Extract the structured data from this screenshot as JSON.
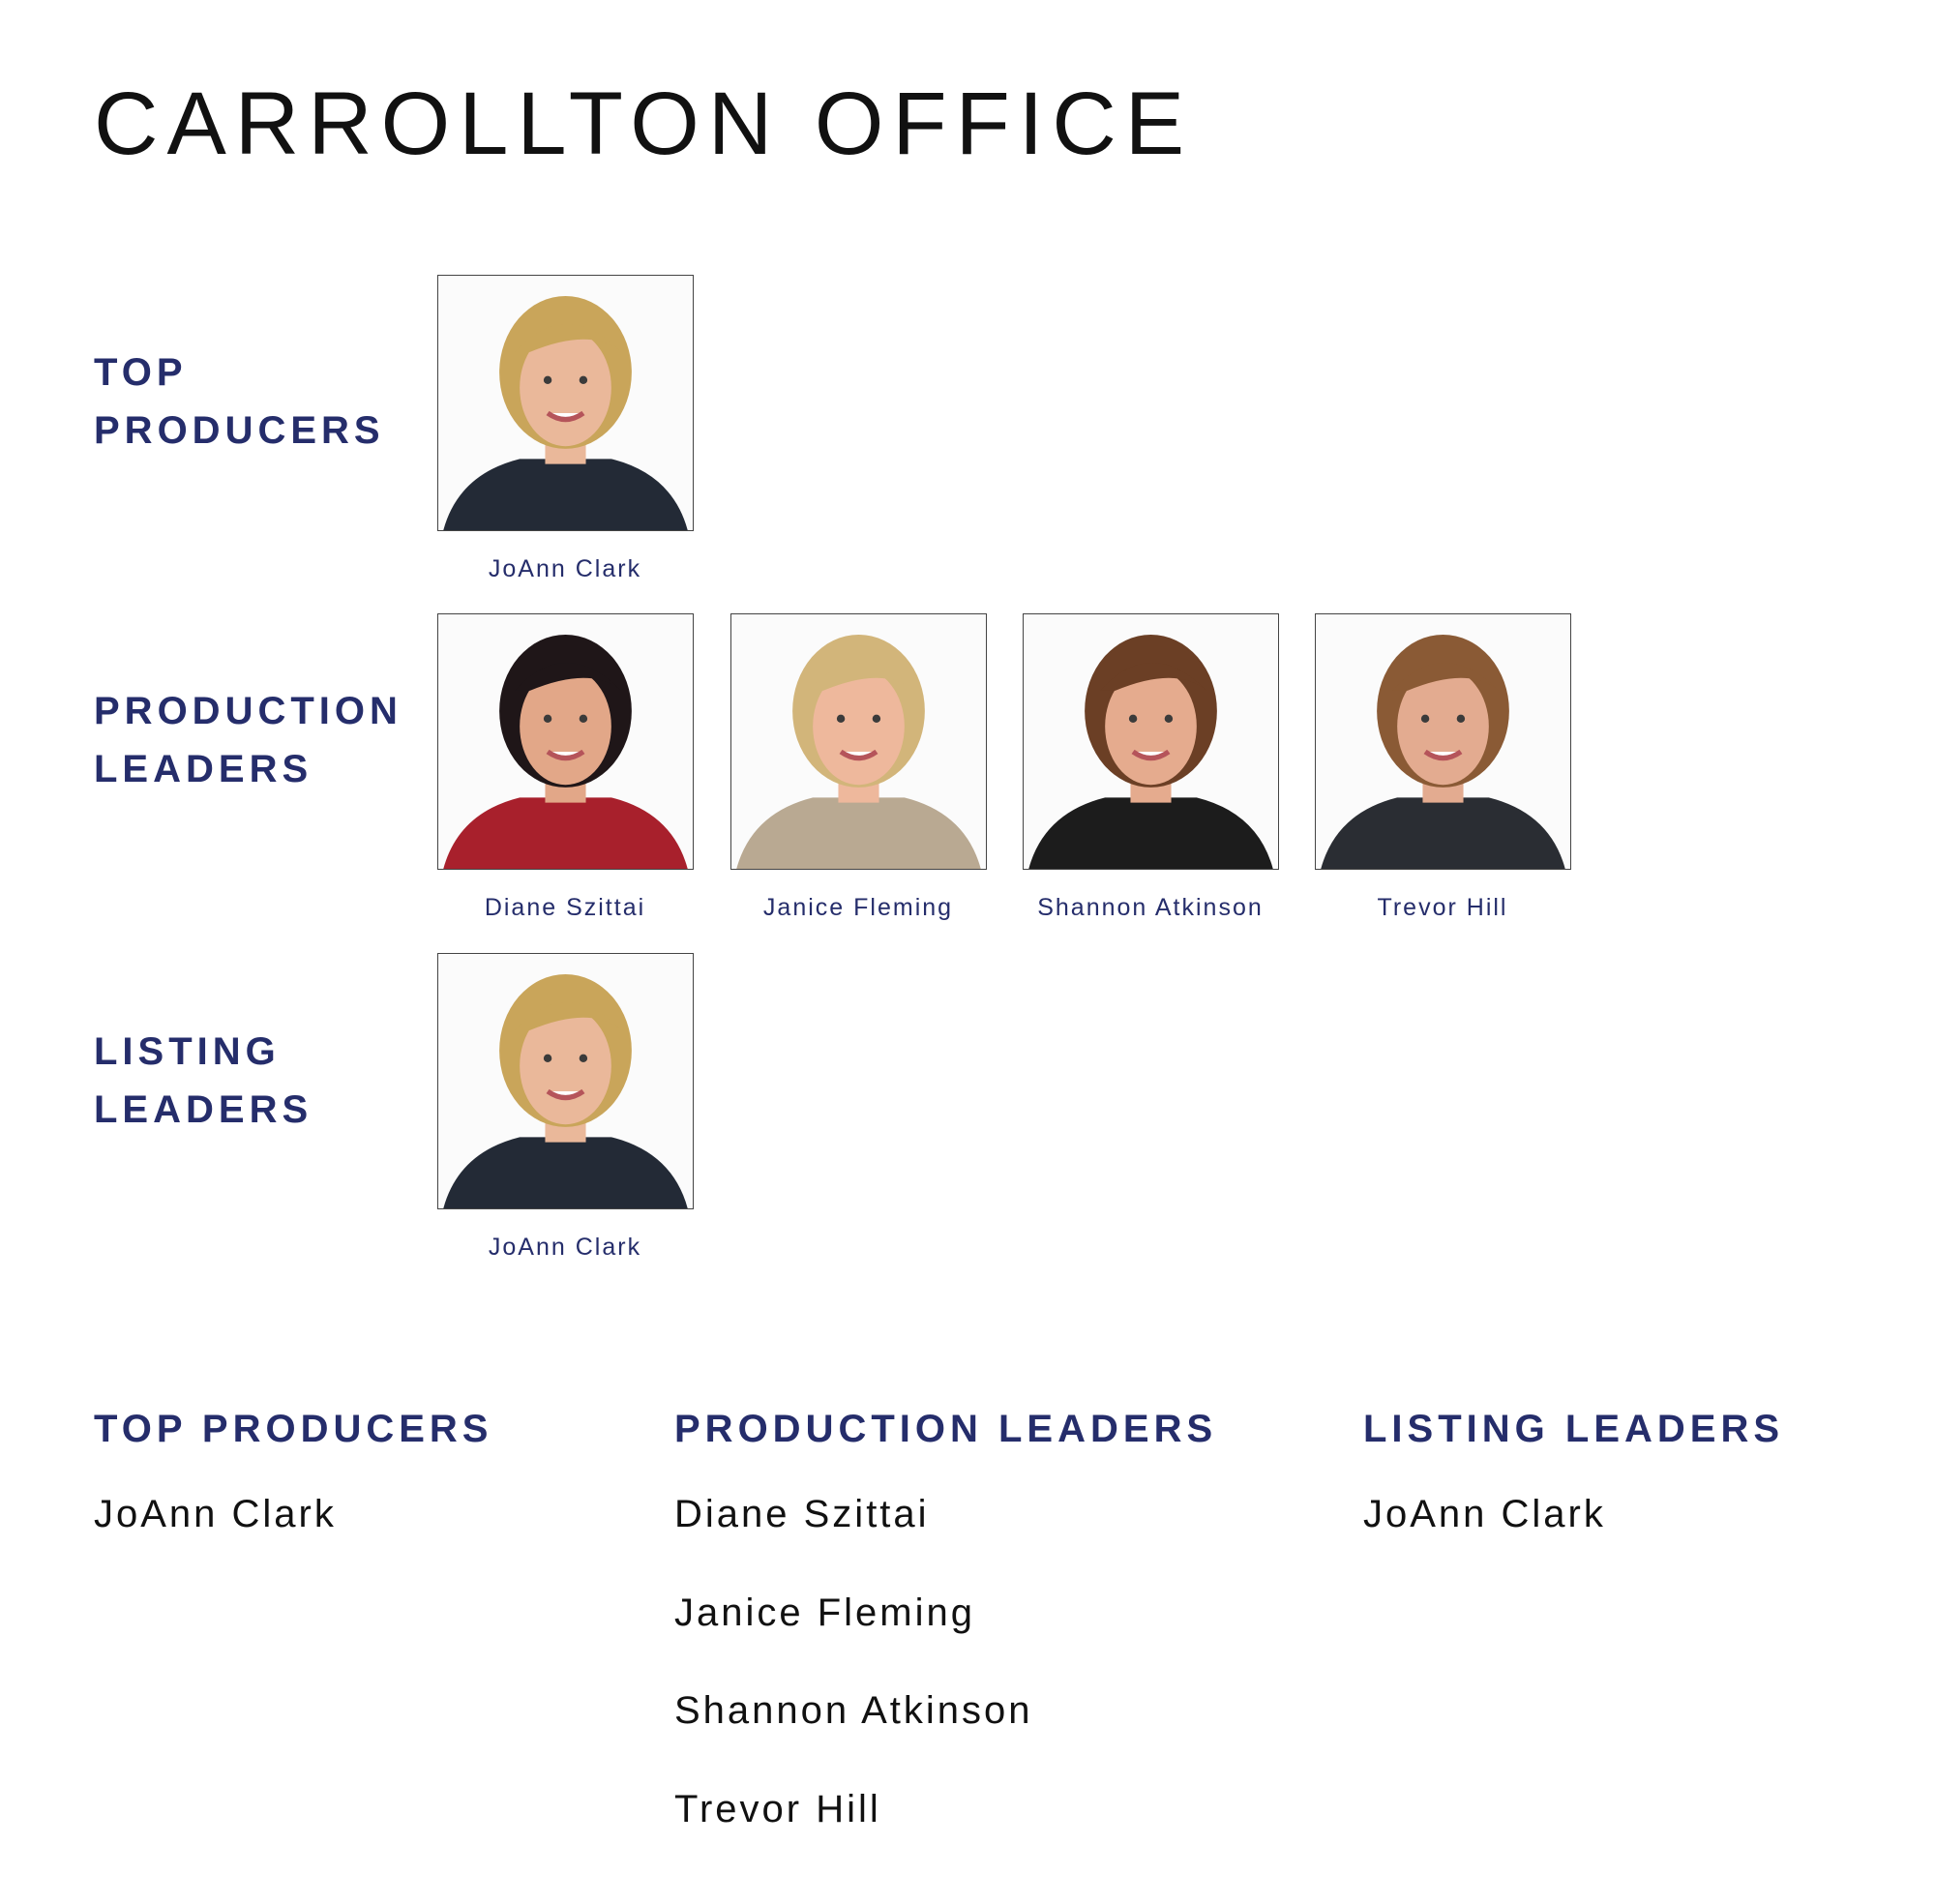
{
  "title": "CARROLLTON OFFICE",
  "accent_color": "#252d6b",
  "sections": [
    {
      "label_line1": "TOP",
      "label_line2": "PRODUCERS",
      "people": [
        {
          "name": "JoAnn Clark",
          "hair": "#c9a55a",
          "skin": "#eab89a",
          "top": "#232a36"
        }
      ]
    },
    {
      "label_line1": "PRODUCTION",
      "label_line2": "LEADERS",
      "people": [
        {
          "name": "Diane Szittai",
          "hair": "#1f1618",
          "skin": "#e2a788",
          "top": "#a8202c"
        },
        {
          "name": "Janice Fleming",
          "hair": "#d2b57a",
          "skin": "#eeb89c",
          "top": "#b9a992"
        },
        {
          "name": "Shannon Atkinson",
          "hair": "#6b3f25",
          "skin": "#e5ab8e",
          "top": "#1c1c1c"
        },
        {
          "name": "Trevor Hill",
          "hair": "#8a5a35",
          "skin": "#e3ab90",
          "top": "#2a2d33"
        }
      ]
    },
    {
      "label_line1": "LISTING",
      "label_line2": "LEADERS",
      "people": [
        {
          "name": "JoAnn Clark",
          "hair": "#c9a55a",
          "skin": "#eab89a",
          "top": "#232a36"
        }
      ]
    }
  ],
  "summary": [
    {
      "heading": "TOP PRODUCERS",
      "names": [
        "JoAnn Clark"
      ]
    },
    {
      "heading": "PRODUCTION LEADERS",
      "names": [
        "Diane Szittai",
        "Janice Fleming",
        "Shannon Atkinson",
        "Trevor Hill"
      ]
    },
    {
      "heading": "LISTING LEADERS",
      "names": [
        "JoAnn Clark"
      ]
    }
  ]
}
